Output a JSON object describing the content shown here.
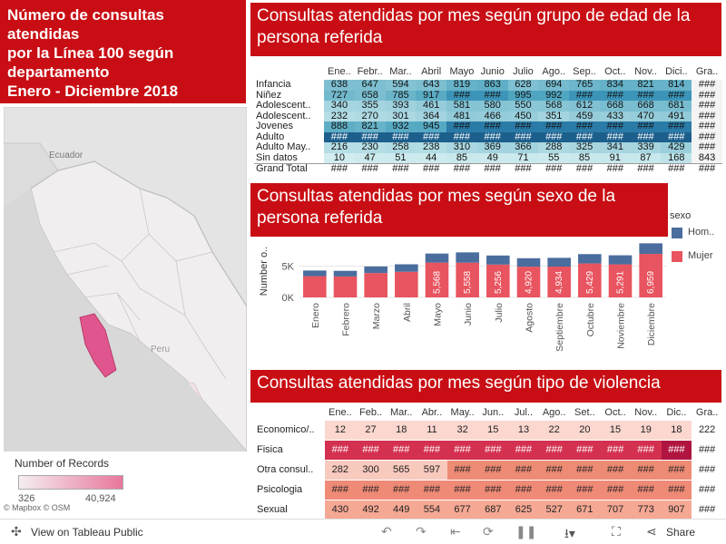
{
  "dashboard_title": [
    "Número de consultas atendidas",
    "por la Línea 100 según",
    "departamento",
    "Enero - Diciembre 2018"
  ],
  "map": {
    "labels": {
      "ecuador": "Ecuador",
      "peru": "Peru"
    },
    "legend_title": "Number of Records",
    "legend_min": "326",
    "legend_max": "40,924",
    "credit": "© Mapbox  © OSM",
    "colors": {
      "base": "#ececec",
      "highlight": "#e0558d",
      "light": "#f2e4ea"
    }
  },
  "table_age": {
    "title": "Consultas atendidas por mes según grupo de edad de la persona referida",
    "columns": [
      "Ene..",
      "Febr..",
      "Mar..",
      "Abril",
      "Mayo",
      "Junio",
      "Julio",
      "Ago..",
      "Sep..",
      "Oct..",
      "Nov..",
      "Dici..",
      "Gra.."
    ],
    "rows": [
      {
        "label": "Infancia",
        "values": [
          "638",
          "647",
          "594",
          "643",
          "819",
          "863",
          "628",
          "694",
          "765",
          "834",
          "821",
          "814",
          "###"
        ]
      },
      {
        "label": "Niñez",
        "values": [
          "727",
          "658",
          "785",
          "917",
          "###",
          "###",
          "995",
          "992",
          "###",
          "###",
          "###",
          "###",
          "###"
        ]
      },
      {
        "label": "Adolescent..",
        "values": [
          "340",
          "355",
          "393",
          "461",
          "581",
          "580",
          "550",
          "568",
          "612",
          "668",
          "668",
          "681",
          "###"
        ]
      },
      {
        "label": "Adolescent..",
        "values": [
          "232",
          "270",
          "301",
          "364",
          "481",
          "466",
          "450",
          "351",
          "459",
          "433",
          "470",
          "491",
          "###"
        ]
      },
      {
        "label": "Jovenes",
        "values": [
          "888",
          "821",
          "932",
          "945",
          "###",
          "###",
          "###",
          "###",
          "###",
          "###",
          "###",
          "###",
          "###"
        ]
      },
      {
        "label": "Adulto",
        "values": [
          "###",
          "###",
          "###",
          "###",
          "###",
          "###",
          "###",
          "###",
          "###",
          "###",
          "###",
          "###",
          "###"
        ]
      },
      {
        "label": "Adulto May..",
        "values": [
          "216",
          "230",
          "258",
          "238",
          "310",
          "369",
          "366",
          "288",
          "325",
          "341",
          "339",
          "429",
          "###"
        ]
      },
      {
        "label": "Sin datos",
        "values": [
          "10",
          "47",
          "51",
          "44",
          "85",
          "49",
          "71",
          "55",
          "85",
          "91",
          "87",
          "168",
          "843"
        ]
      }
    ],
    "total": {
      "label": "Grand Total",
      "values": [
        "###",
        "###",
        "###",
        "###",
        "###",
        "###",
        "###",
        "###",
        "###",
        "###",
        "###",
        "###",
        "###"
      ]
    }
  },
  "chart_title": "Consultas atendidas por mes según sexo de la persona referida",
  "chart_data": {
    "type": "bar",
    "stacked": true,
    "title": "Consultas atendidas por mes según sexo de la persona referida",
    "ylabel": "Number o..",
    "yticks": [
      "0K",
      "5K"
    ],
    "ylim": [
      0,
      9000
    ],
    "legend_title": "sexo",
    "categories": [
      "Enero",
      "Febrero",
      "Marzo",
      "Abril",
      "Mayo",
      "Junio",
      "Julio",
      "Agosto",
      "Septiembre",
      "Octubre",
      "Noviembre",
      "Diciembre"
    ],
    "series": [
      {
        "name": "Mujer",
        "color": "#e8545f",
        "values": [
          3400,
          3350,
          3900,
          4100,
          5568,
          5558,
          5256,
          4920,
          4934,
          5429,
          5291,
          6959
        ],
        "labels": [
          "",
          "",
          "",
          "",
          "5,568",
          "5,558",
          "5,256",
          "4,920",
          "4,934",
          "5,429",
          "5,291",
          "6,959"
        ]
      },
      {
        "name": "Hom..",
        "color": "#4a6d9e",
        "values": [
          900,
          900,
          1050,
          1200,
          1450,
          1650,
          1450,
          1350,
          1400,
          1500,
          1450,
          1700
        ]
      }
    ]
  },
  "table_violence": {
    "title": "Consultas atendidas por mes según tipo de violencia",
    "columns": [
      "Ene..",
      "Feb..",
      "Mar..",
      "Abr..",
      "May..",
      "Jun..",
      "Jul..",
      "Ago..",
      "Set..",
      "Oct..",
      "Nov..",
      "Dic..",
      "Gra.."
    ],
    "rows": [
      {
        "label": "Economico/..",
        "values": [
          "12",
          "27",
          "18",
          "11",
          "32",
          "15",
          "13",
          "22",
          "20",
          "15",
          "19",
          "18",
          "222"
        ]
      },
      {
        "label": "Fisica",
        "values": [
          "###",
          "###",
          "###",
          "###",
          "###",
          "###",
          "###",
          "###",
          "###",
          "###",
          "###",
          "###",
          "###"
        ]
      },
      {
        "label": "Otra consul..",
        "values": [
          "282",
          "300",
          "565",
          "597",
          "###",
          "###",
          "###",
          "###",
          "###",
          "###",
          "###",
          "###",
          "###"
        ]
      },
      {
        "label": "Psicologia",
        "values": [
          "###",
          "###",
          "###",
          "###",
          "###",
          "###",
          "###",
          "###",
          "###",
          "###",
          "###",
          "###",
          "###"
        ]
      },
      {
        "label": "Sexual",
        "values": [
          "430",
          "492",
          "449",
          "554",
          "677",
          "687",
          "625",
          "527",
          "671",
          "707",
          "773",
          "907",
          "###"
        ]
      }
    ]
  },
  "toolbar": {
    "view_label": "View on Tableau Public",
    "share_label": "Share"
  }
}
